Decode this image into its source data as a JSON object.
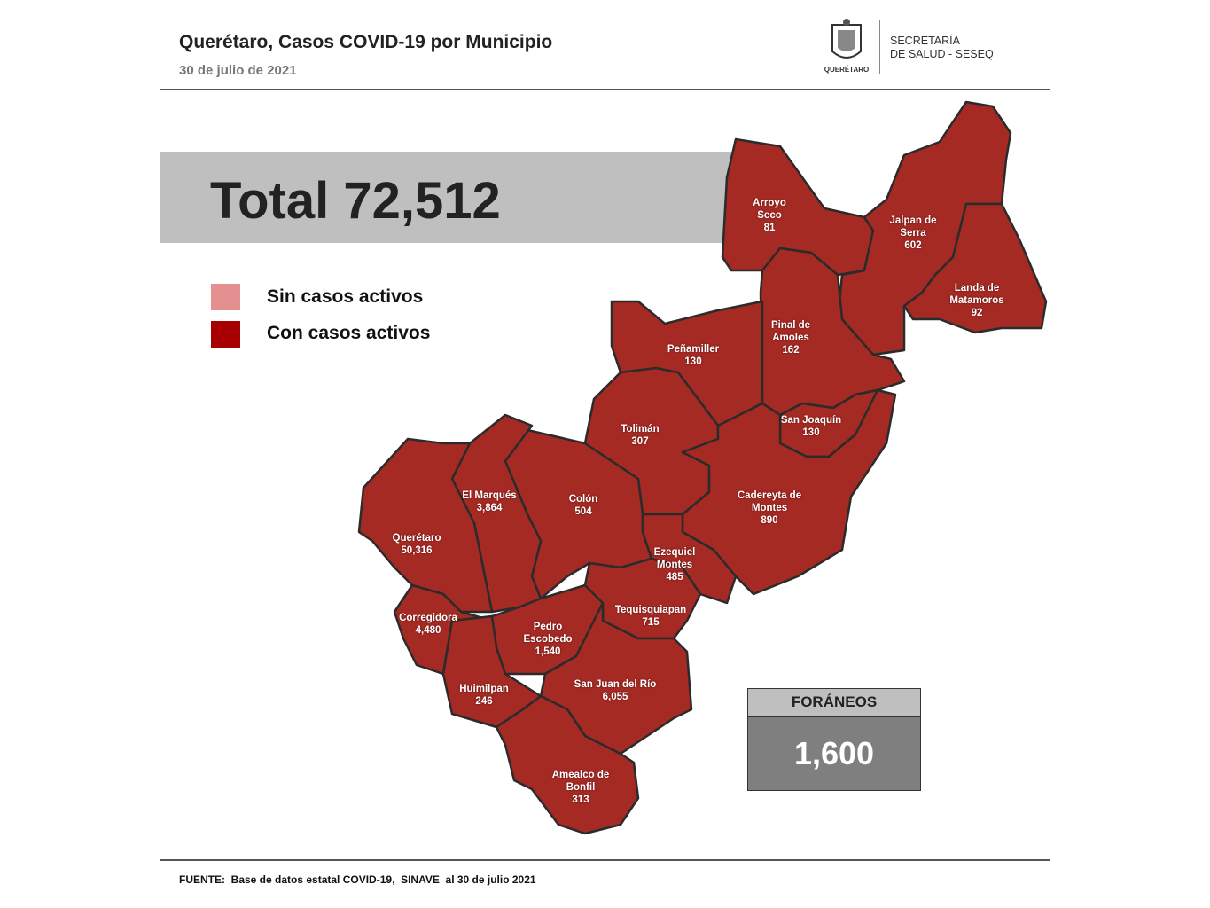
{
  "header": {
    "title": "Querétaro, Casos COVID-19 por Municipio",
    "date": "30 de julio de 2021"
  },
  "logo": {
    "state": "QUERÉTARO",
    "agency": [
      "SECRETARÍA",
      "DE SALUD - SESEQ"
    ]
  },
  "total": {
    "label": "Total",
    "value": "72,512"
  },
  "legend": [
    "Sin casos activos",
    "Con casos activos"
  ],
  "municipalities": [
    {
      "name": "Arroyo Seco",
      "cases": "81"
    },
    {
      "name": "Jalpan de Serra",
      "cases": "602"
    },
    {
      "name": "Landa de Matamoros",
      "cases": "92"
    },
    {
      "name": "Pinal de Amoles",
      "cases": "162"
    },
    {
      "name": "Peñamiller",
      "cases": "130"
    },
    {
      "name": "San Joaquín",
      "cases": "130"
    },
    {
      "name": "Tolimán",
      "cases": "307"
    },
    {
      "name": "Cadereyta de Montes",
      "cases": "890"
    },
    {
      "name": "Colón",
      "cases": "504"
    },
    {
      "name": "El Marqués",
      "cases": "3,864"
    },
    {
      "name": "Querétaro",
      "cases": "50,316"
    },
    {
      "name": "Ezequiel Montes",
      "cases": "485"
    },
    {
      "name": "Tequisquiapan",
      "cases": "715"
    },
    {
      "name": "Corregidora",
      "cases": "4,480"
    },
    {
      "name": "Pedro Escobedo",
      "cases": "1,540"
    },
    {
      "name": "San Juan del Río",
      "cases": "6,055"
    },
    {
      "name": "Huimilpan",
      "cases": "246"
    },
    {
      "name": "Amealco de Bonfil",
      "cases": "313"
    }
  ],
  "foraneos": {
    "label": "FORÁNEOS",
    "value": "1,600"
  },
  "footer": "FUENTE:  Base de datos estatal COVID-19,  SINAVE  al 30 de julio 2021"
}
